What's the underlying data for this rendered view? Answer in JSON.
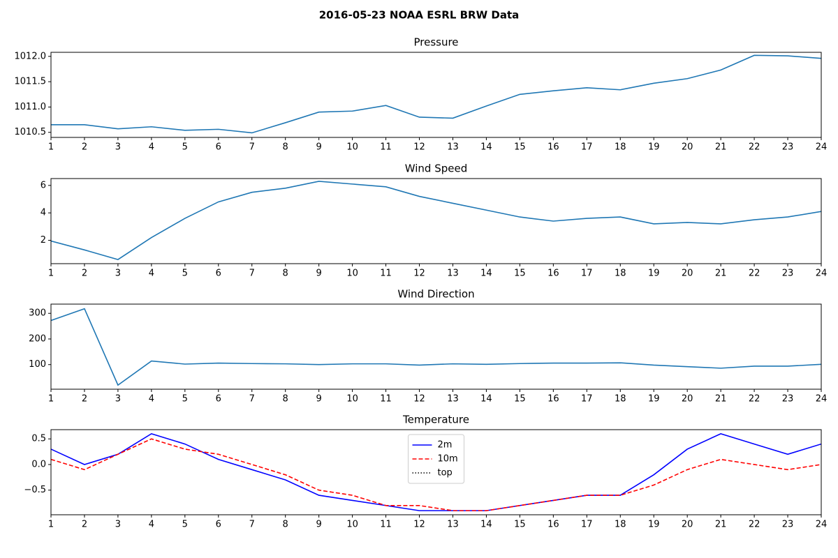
{
  "title": "2016-05-23 NOAA ESRL BRW Data",
  "chart_data": [
    {
      "type": "line",
      "title": "Pressure",
      "x": [
        1,
        2,
        3,
        4,
        5,
        6,
        7,
        8,
        9,
        10,
        11,
        12,
        13,
        14,
        15,
        16,
        17,
        18,
        19,
        20,
        21,
        22,
        23,
        24
      ],
      "series": [
        {
          "color": "#1f77b4",
          "dash": "solid",
          "values": [
            1010.65,
            1010.65,
            1010.57,
            1010.61,
            1010.54,
            1010.56,
            1010.49,
            1010.69,
            1010.9,
            1010.92,
            1011.03,
            1010.8,
            1010.78,
            1011.02,
            1011.25,
            1011.32,
            1011.38,
            1011.34,
            1011.47,
            1011.56,
            1011.73,
            1012.02,
            1012.01,
            1011.96
          ]
        }
      ],
      "xlim": [
        1,
        24
      ],
      "xticks": [
        1,
        2,
        3,
        4,
        5,
        6,
        7,
        8,
        9,
        10,
        11,
        12,
        13,
        14,
        15,
        16,
        17,
        18,
        19,
        20,
        21,
        22,
        23,
        24
      ],
      "ylim": [
        1010.4,
        1012.08
      ],
      "yticks": [
        1010.5,
        {
          "value": 1011,
          "label": "1011.0"
        },
        1011.5,
        {
          "value": 1012,
          "label": "1012.0"
        }
      ]
    },
    {
      "type": "line",
      "title": "Wind Speed",
      "x": [
        1,
        2,
        3,
        4,
        5,
        6,
        7,
        8,
        9,
        10,
        11,
        12,
        13,
        14,
        15,
        16,
        17,
        18,
        19,
        20,
        21,
        22,
        23,
        24
      ],
      "series": [
        {
          "color": "#1f77b4",
          "dash": "solid",
          "values": [
            1.95,
            1.3,
            0.6,
            2.2,
            3.6,
            4.8,
            5.5,
            5.8,
            6.3,
            6.1,
            5.9,
            5.2,
            4.7,
            4.2,
            3.7,
            3.4,
            3.6,
            3.7,
            3.2,
            3.3,
            3.2,
            3.5,
            3.7,
            4.1
          ]
        }
      ],
      "xlim": [
        1,
        24
      ],
      "xticks": [
        1,
        2,
        3,
        4,
        5,
        6,
        7,
        8,
        9,
        10,
        11,
        12,
        13,
        14,
        15,
        16,
        17,
        18,
        19,
        20,
        21,
        22,
        23,
        24
      ],
      "ylim": [
        0.3,
        6.5
      ],
      "yticks": [
        2,
        4,
        6
      ]
    },
    {
      "type": "line",
      "title": "Wind Direction",
      "x": [
        1,
        2,
        3,
        4,
        5,
        6,
        7,
        8,
        9,
        10,
        11,
        12,
        13,
        14,
        15,
        16,
        17,
        18,
        19,
        20,
        21,
        22,
        23,
        24
      ],
      "series": [
        {
          "color": "#1f77b4",
          "dash": "solid",
          "values": [
            272,
            318,
            20,
            114,
            102,
            106,
            104,
            103,
            100,
            103,
            103,
            98,
            103,
            101,
            104,
            106,
            106,
            107,
            98,
            92,
            86,
            94,
            94,
            101
          ]
        }
      ],
      "xlim": [
        1,
        24
      ],
      "xticks": [
        1,
        2,
        3,
        4,
        5,
        6,
        7,
        8,
        9,
        10,
        11,
        12,
        13,
        14,
        15,
        16,
        17,
        18,
        19,
        20,
        21,
        22,
        23,
        24
      ],
      "ylim": [
        4,
        336
      ],
      "yticks": [
        100,
        200,
        300
      ]
    },
    {
      "type": "line",
      "title": "Temperature",
      "x": [
        1,
        2,
        3,
        4,
        5,
        6,
        7,
        8,
        9,
        10,
        11,
        12,
        13,
        14,
        15,
        16,
        17,
        18,
        19,
        20,
        21,
        22,
        23,
        24
      ],
      "series": [
        {
          "name": "2m",
          "color": "blue",
          "dash": "solid",
          "values": [
            0.3,
            0,
            0.2,
            0.6,
            0.4,
            0.1,
            -0.1,
            -0.3,
            -0.6,
            -0.7,
            -0.8,
            -0.9,
            -0.9,
            -0.9,
            -0.8,
            -0.7,
            -0.6,
            -0.6,
            -0.2,
            0.3,
            0.6,
            0.4,
            0.2,
            0.4
          ]
        },
        {
          "name": "10m",
          "color": "red",
          "dash": "dashed",
          "values": [
            0.1,
            -0.1,
            0.2,
            0.5,
            0.3,
            0.2,
            0,
            -0.2,
            -0.5,
            -0.6,
            -0.8,
            -0.8,
            -0.9,
            -0.9,
            -0.8,
            -0.7,
            -0.6,
            -0.6,
            -0.4,
            -0.1,
            0.1,
            0,
            -0.1,
            0
          ]
        },
        {
          "name": "top",
          "color": "black",
          "dash": "dotted",
          "values": [
            null,
            null,
            null,
            null,
            null,
            null,
            null,
            null,
            null,
            null,
            null,
            null,
            null,
            null,
            null,
            null,
            null,
            null,
            null,
            null,
            null,
            null,
            null,
            null
          ]
        }
      ],
      "xlim": [
        1,
        24
      ],
      "xticks": [
        1,
        2,
        3,
        4,
        5,
        6,
        7,
        8,
        9,
        10,
        11,
        12,
        13,
        14,
        15,
        16,
        17,
        18,
        19,
        20,
        21,
        22,
        23,
        24
      ],
      "ylim": [
        -0.98,
        0.68
      ],
      "yticks": [
        {
          "value": -0.5,
          "label": "−0.5"
        },
        {
          "value": 0,
          "label": "0.0"
        },
        0.5
      ],
      "legend": "upper center"
    }
  ]
}
